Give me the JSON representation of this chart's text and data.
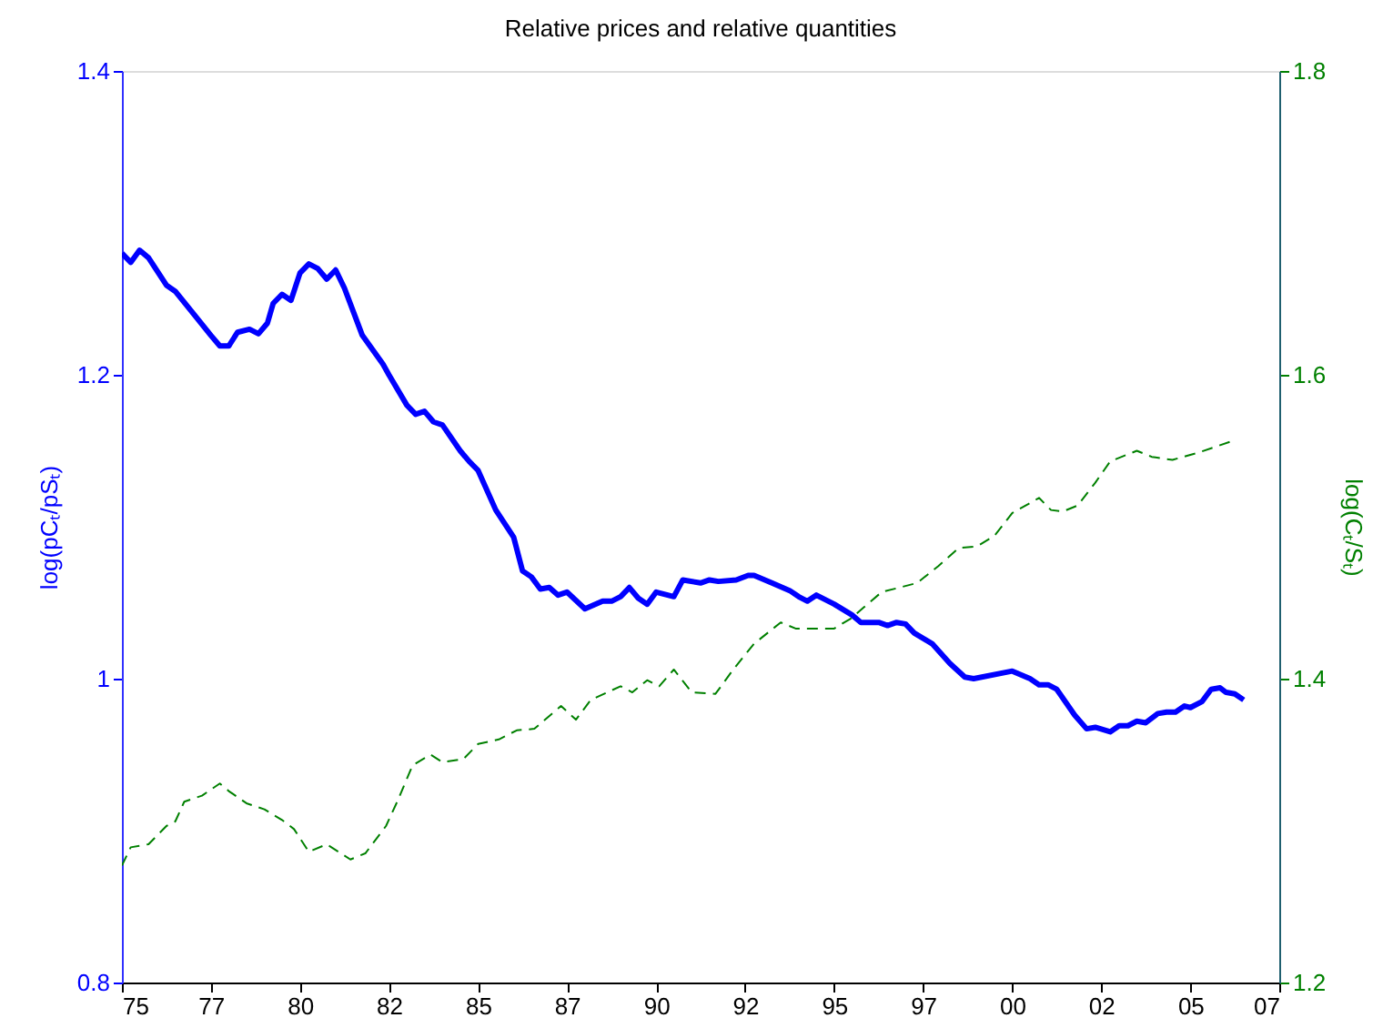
{
  "chart_data": {
    "type": "line",
    "title": "Relative prices and relative quantities",
    "ylabel": "log(pCₜ/pSₜ)",
    "y2label": "log(Cₜ/Sₜ)",
    "xlim": [
      "1975-01",
      "2007-07"
    ],
    "xticks": [
      {
        "value": "1975-01",
        "label": "75"
      },
      {
        "value": "1977-07",
        "label": "77"
      },
      {
        "value": "1980-01",
        "label": "80"
      },
      {
        "value": "1982-07",
        "label": "82"
      },
      {
        "value": "1985-01",
        "label": "85"
      },
      {
        "value": "1987-07",
        "label": "87"
      },
      {
        "value": "1990-01",
        "label": "90"
      },
      {
        "value": "1992-07",
        "label": "92"
      },
      {
        "value": "1995-01",
        "label": "95"
      },
      {
        "value": "1997-07",
        "label": "97"
      },
      {
        "value": "2000-01",
        "label": "00"
      },
      {
        "value": "2002-07",
        "label": "02"
      },
      {
        "value": "2005-01",
        "label": "05"
      },
      {
        "value": "2007-07",
        "label": "07"
      }
    ],
    "ylim": [
      0.8,
      1.4
    ],
    "yticks": [
      0.8,
      {
        "value": 1,
        "label": "1"
      },
      1.2,
      1.4
    ],
    "y2lim": [
      1.2,
      1.8
    ],
    "y2ticks": [
      1.2,
      1.4,
      1.6,
      1.8
    ],
    "grid": false,
    "series": [
      {
        "color": "#0000ff",
        "line_style": "solid",
        "x": [
          "1975-01",
          "1975-04",
          "1975-07",
          "1975-10",
          "1976-04",
          "1976-07",
          "1977-02",
          "1977-07",
          "1977-10",
          "1978-01",
          "1978-04",
          "1978-08",
          "1978-11",
          "1979-02",
          "1979-04",
          "1979-07",
          "1979-10",
          "1980-01",
          "1980-04",
          "1980-07",
          "1980-10",
          "1981-01",
          "1981-04",
          "1981-10",
          "1982-05",
          "1982-07",
          "1983-01",
          "1983-04",
          "1983-07",
          "1983-10",
          "1984-01",
          "1984-07",
          "1984-10",
          "1985-01",
          "1985-07",
          "1986-01",
          "1986-04",
          "1986-07",
          "1986-10",
          "1987-01",
          "1987-04",
          "1987-07",
          "1988-01",
          "1988-07",
          "1988-10",
          "1989-01",
          "1989-04",
          "1989-07",
          "1989-10",
          "1990-01",
          "1990-07",
          "1990-10",
          "1991-04",
          "1991-07",
          "1991-10",
          "1992-04",
          "1992-08",
          "1992-10",
          "1993-04",
          "1993-10",
          "1994-01",
          "1994-04",
          "1994-07",
          "1995-01",
          "1995-07",
          "1995-10",
          "1996-04",
          "1996-07",
          "1996-10",
          "1997-01",
          "1997-04",
          "1997-10",
          "1998-04",
          "1998-09",
          "1998-12",
          "2000-01",
          "2000-07",
          "2000-10",
          "2001-01",
          "2001-04",
          "2001-10",
          "2002-02",
          "2002-05",
          "2002-10",
          "2003-01",
          "2003-04",
          "2003-07",
          "2003-10",
          "2004-02",
          "2004-05",
          "2004-08",
          "2004-11",
          "2005-01",
          "2005-05",
          "2005-08",
          "2005-11",
          "2006-01",
          "2006-04",
          "2006-07"
        ],
        "values": [
          1.28,
          1.274,
          1.282,
          1.277,
          1.259,
          1.255,
          1.238,
          1.226,
          1.219,
          1.219,
          1.228,
          1.23,
          1.227,
          1.234,
          1.247,
          1.253,
          1.249,
          1.267,
          1.273,
          1.27,
          1.263,
          1.269,
          1.257,
          1.226,
          1.207,
          1.2,
          1.18,
          1.174,
          1.176,
          1.169,
          1.167,
          1.15,
          1.143,
          1.137,
          1.111,
          1.093,
          1.071,
          1.067,
          1.059,
          1.06,
          1.055,
          1.057,
          1.046,
          1.051,
          1.051,
          1.054,
          1.06,
          1.053,
          1.049,
          1.057,
          1.054,
          1.065,
          1.063,
          1.065,
          1.064,
          1.065,
          1.068,
          1.068,
          1.063,
          1.058,
          1.054,
          1.051,
          1.055,
          1.049,
          1.042,
          1.037,
          1.037,
          1.035,
          1.037,
          1.036,
          1.03,
          1.023,
          1.01,
          1.001,
          1.0,
          1.005,
          1.0,
          0.996,
          0.996,
          0.993,
          0.976,
          0.967,
          0.968,
          0.965,
          0.969,
          0.969,
          0.972,
          0.971,
          0.977,
          0.978,
          0.978,
          0.982,
          0.981,
          0.985,
          0.993,
          0.994,
          0.991,
          0.99,
          0.986
        ]
      },
      {
        "color": "#008000",
        "line_style": "dashed",
        "axis": "y2",
        "x": [
          "1975-01",
          "1975-04",
          "1975-10",
          "1976-04",
          "1976-07",
          "1976-10",
          "1977-04",
          "1977-10",
          "1978-01",
          "1978-07",
          "1979-01",
          "1979-07",
          "1979-11",
          "1980-04",
          "1980-10",
          "1981-06",
          "1981-11",
          "1982-06",
          "1982-10",
          "1983-03",
          "1983-09",
          "1984-01",
          "1984-08",
          "1985-01",
          "1985-08",
          "1986-02",
          "1986-08",
          "1987-05",
          "1987-10",
          "1988-03",
          "1989-01",
          "1989-05",
          "1989-10",
          "1990-02",
          "1990-07",
          "1991-01",
          "1991-09",
          "1992-03",
          "1992-10",
          "1993-07",
          "1993-12",
          "1994-06",
          "1995-01",
          "1995-07",
          "1995-11",
          "1996-05",
          "1996-11",
          "1997-05",
          "1997-12",
          "1998-07",
          "1999-01",
          "1999-07",
          "2000-01",
          "2000-10",
          "2001-02",
          "2001-06",
          "2001-11",
          "2002-05",
          "2002-10",
          "2003-07",
          "2003-12",
          "2004-07",
          "2005-04",
          "2005-10",
          "2006-04"
        ],
        "values": [
          1.277,
          1.289,
          1.291,
          1.303,
          1.306,
          1.319,
          1.323,
          1.331,
          1.326,
          1.318,
          1.314,
          1.307,
          1.301,
          1.286,
          1.291,
          1.281,
          1.285,
          1.303,
          1.32,
          1.343,
          1.35,
          1.345,
          1.347,
          1.357,
          1.36,
          1.366,
          1.367,
          1.382,
          1.373,
          1.386,
          1.395,
          1.391,
          1.399,
          1.395,
          1.406,
          1.391,
          1.39,
          1.406,
          1.423,
          1.437,
          1.433,
          1.433,
          1.433,
          1.44,
          1.447,
          1.457,
          1.46,
          1.463,
          1.474,
          1.486,
          1.487,
          1.494,
          1.509,
          1.519,
          1.511,
          1.51,
          1.514,
          1.529,
          1.543,
          1.55,
          1.546,
          1.544,
          1.549,
          1.553,
          1.557
        ]
      }
    ]
  }
}
